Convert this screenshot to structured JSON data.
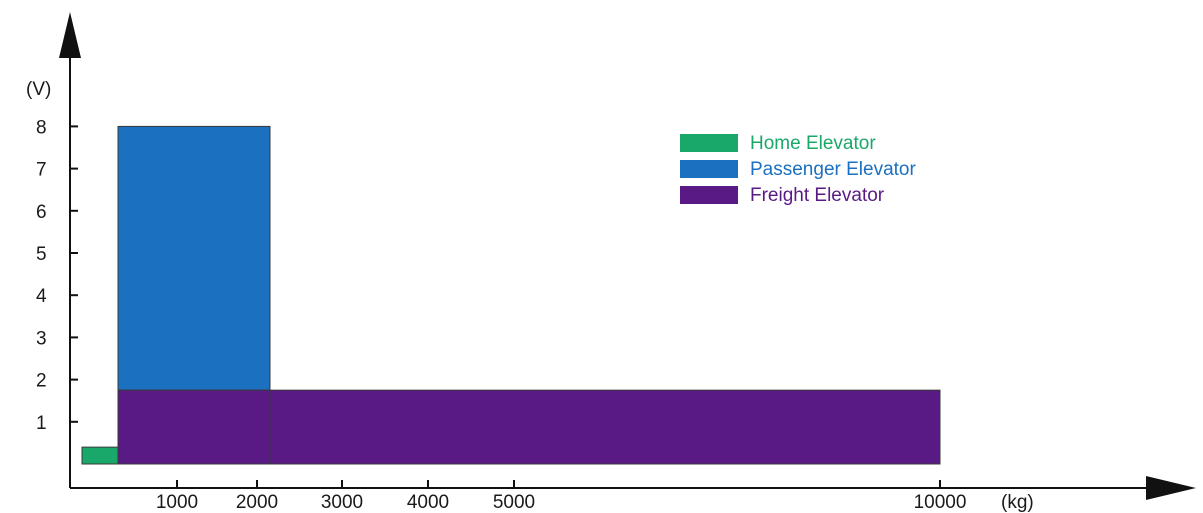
{
  "chart_data": {
    "type": "bar",
    "title": "",
    "xlabel": "(kg)",
    "ylabel": "(V)",
    "x_ticks": [
      "1000",
      "2000",
      "3000",
      "4000",
      "5000",
      "10000"
    ],
    "y_ticks": [
      "1",
      "2",
      "3",
      "4",
      "5",
      "6",
      "7",
      "8"
    ],
    "xlim": [
      0,
      10000
    ],
    "ylim": [
      0,
      8
    ],
    "legend_position": "top-right",
    "series": [
      {
        "name": "Home Elevator",
        "color": "#1aa86a",
        "ranges": [
          {
            "x0": 0,
            "x1": 400,
            "y0": 0,
            "y1": 0.4
          }
        ]
      },
      {
        "name": "Passenger Elevator",
        "color": "#1b70bf",
        "ranges": [
          {
            "x0": 400,
            "x1": 2200,
            "y0": 1.75,
            "y1": 8
          }
        ]
      },
      {
        "name": "Freight Elevator",
        "color": "#5a1a85",
        "ranges": [
          {
            "x0": 400,
            "x1": 2200,
            "y0": 0,
            "y1": 1.75
          },
          {
            "x0": 2200,
            "x1": 10000,
            "y0": 0,
            "y1": 1.75
          }
        ]
      }
    ]
  }
}
